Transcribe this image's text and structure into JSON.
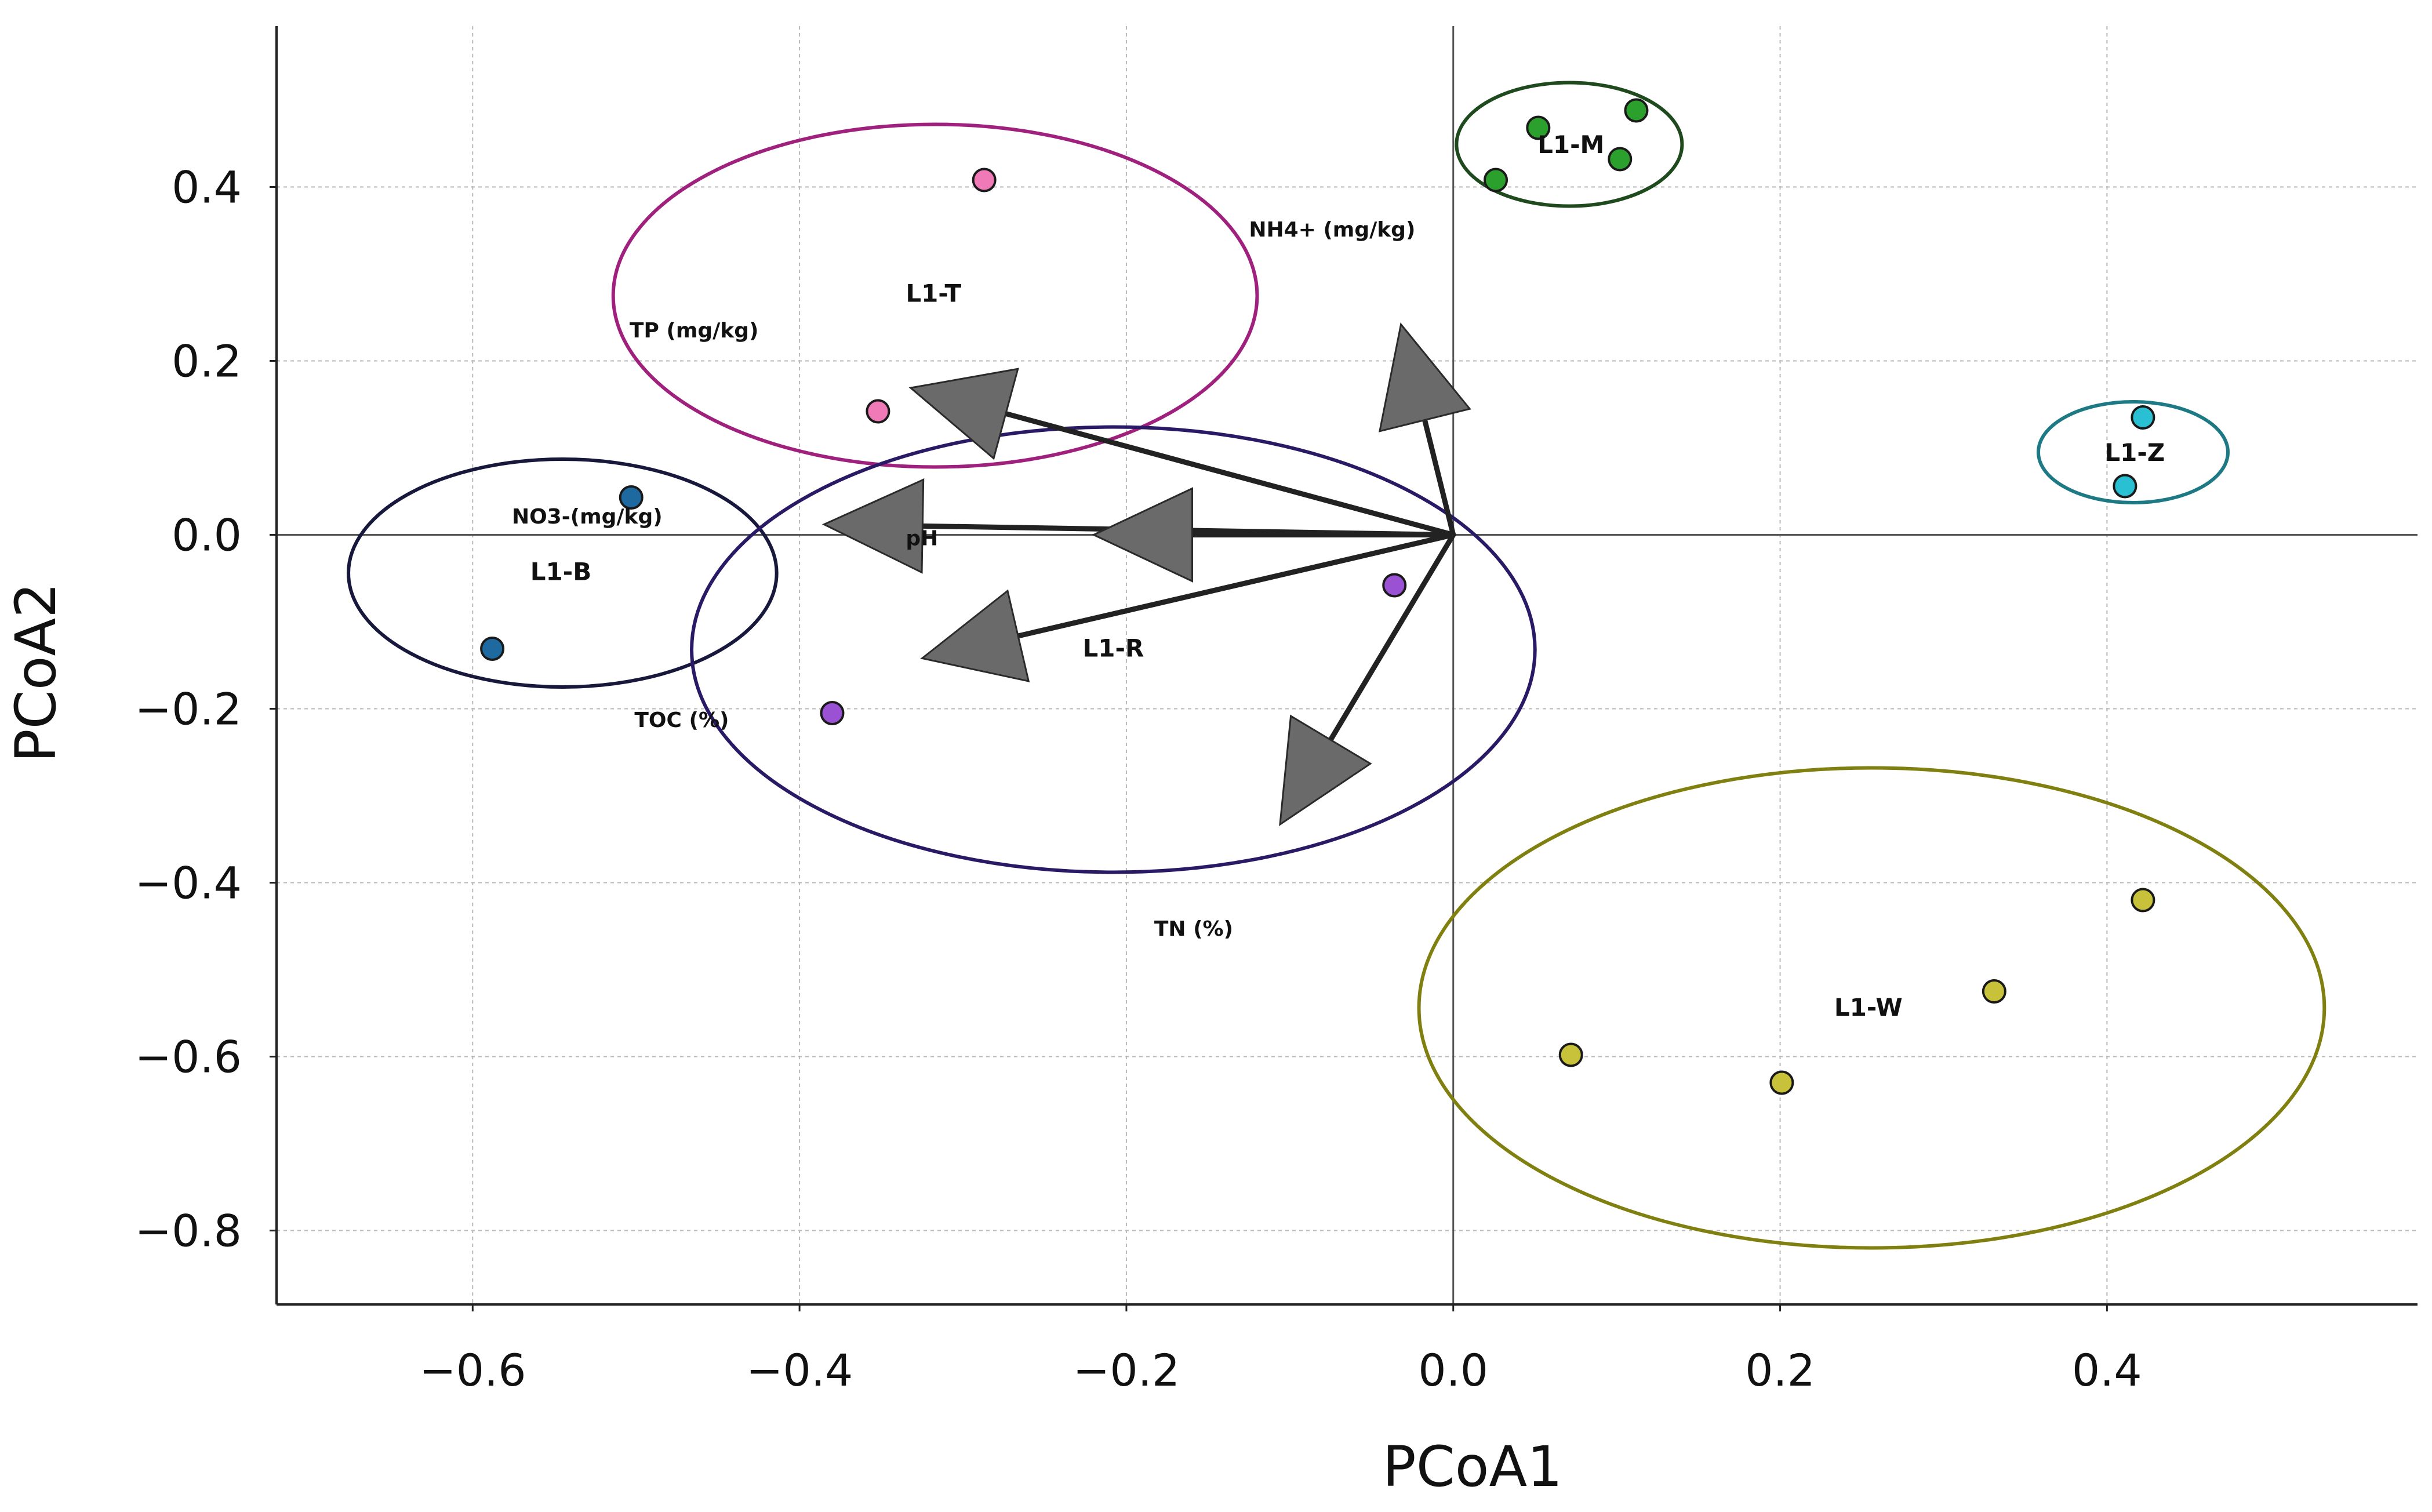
{
  "chart_data": {
    "type": "scatter",
    "title": "",
    "xlabel": "PCoA1",
    "ylabel": "PCoA2",
    "xlim": [
      -0.72,
      0.59
    ],
    "ylim": [
      -0.885,
      0.585
    ],
    "grid": true,
    "x_ticks": [
      -0.6,
      -0.4,
      -0.2,
      0.0,
      0.2,
      0.4
    ],
    "y_ticks": [
      0.4,
      0.2,
      0.0,
      -0.2,
      -0.4,
      -0.6,
      -0.8
    ],
    "x_tick_labels": [
      "−0.6",
      "−0.4",
      "−0.2",
      "0.0",
      "0.2",
      "0.4"
    ],
    "y_tick_labels": [
      "0.4",
      "0.2",
      "0.0",
      "−0.2",
      "−0.4",
      "−0.6",
      "−0.8"
    ],
    "groups": [
      {
        "name": "L1-T",
        "point_color": "#f07ab8",
        "ellipse_color": "#a0207d",
        "points": [
          {
            "x": -0.287,
            "y": 0.408
          },
          {
            "x": -0.352,
            "y": 0.142
          }
        ],
        "ellipse": {
          "cx": -0.317,
          "cy": 0.275,
          "rx": 0.197,
          "ry": 0.197
        },
        "label_pos": {
          "x": -0.318,
          "y": 0.278
        }
      },
      {
        "name": "L1-M",
        "point_color": "#2ca02c",
        "ellipse_color": "#1e4a1e",
        "points": [
          {
            "x": 0.052,
            "y": 0.468
          },
          {
            "x": 0.112,
            "y": 0.488
          },
          {
            "x": 0.102,
            "y": 0.432
          },
          {
            "x": 0.026,
            "y": 0.408
          }
        ],
        "ellipse": {
          "cx": 0.071,
          "cy": 0.449,
          "rx": 0.069,
          "ry": 0.071
        },
        "label_pos": {
          "x": 0.072,
          "y": 0.449
        }
      },
      {
        "name": "L1-Z",
        "point_color": "#29c0d4",
        "ellipse_color": "#1d7a85",
        "points": [
          {
            "x": 0.422,
            "y": 0.135
          },
          {
            "x": 0.411,
            "y": 0.056
          }
        ],
        "ellipse": {
          "cx": 0.416,
          "cy": 0.095,
          "rx": 0.058,
          "ry": 0.058
        },
        "label_pos": {
          "x": 0.417,
          "y": 0.095
        }
      },
      {
        "name": "L1-B",
        "point_color": "#1e6aa0",
        "ellipse_color": "#18183d",
        "points": [
          {
            "x": -0.503,
            "y": 0.043
          },
          {
            "x": -0.588,
            "y": -0.131
          }
        ],
        "ellipse": {
          "cx": -0.545,
          "cy": -0.044,
          "rx": 0.131,
          "ry": 0.131
        },
        "label_pos": {
          "x": -0.546,
          "y": -0.042
        }
      },
      {
        "name": "L1-R",
        "point_color": "#9b51d4",
        "ellipse_color": "#2a1a66",
        "points": [
          {
            "x": -0.036,
            "y": -0.058
          },
          {
            "x": -0.38,
            "y": -0.205
          }
        ],
        "ellipse": {
          "cx": -0.208,
          "cy": -0.132,
          "rx": 0.258,
          "ry": 0.256
        },
        "label_pos": {
          "x": -0.208,
          "y": -0.13
        }
      },
      {
        "name": "L1-W",
        "point_color": "#c8c23a",
        "ellipse_color": "#808010",
        "points": [
          {
            "x": 0.422,
            "y": -0.42
          },
          {
            "x": 0.331,
            "y": -0.525
          },
          {
            "x": 0.072,
            "y": -0.598
          },
          {
            "x": 0.201,
            "y": -0.63
          }
        ],
        "ellipse": {
          "cx": 0.256,
          "cy": -0.544,
          "rx": 0.277,
          "ry": 0.276
        },
        "label_pos": {
          "x": 0.254,
          "y": -0.543
        }
      }
    ],
    "vectors": [
      {
        "name": "NH4+ (mg/kg)",
        "x": -0.032,
        "y": 0.242,
        "label_x": -0.125,
        "label_y": 0.351
      },
      {
        "name": "TP (mg/kg)",
        "x": -0.332,
        "y": 0.169,
        "label_x": -0.504,
        "label_y": 0.235
      },
      {
        "name": "NO3-(mg/kg)",
        "x": -0.385,
        "y": 0.012,
        "label_x": -0.576,
        "label_y": 0.021
      },
      {
        "name": "pH",
        "x": -0.22,
        "y": 0.0,
        "label_x": -0.335,
        "label_y": -0.004
      },
      {
        "name": "TOC (%)",
        "x": -0.325,
        "y": -0.142,
        "label_x": -0.501,
        "label_y": -0.213
      },
      {
        "name": "TN (%)",
        "x": -0.106,
        "y": -0.333,
        "label_x": -0.183,
        "label_y": -0.453
      }
    ]
  }
}
